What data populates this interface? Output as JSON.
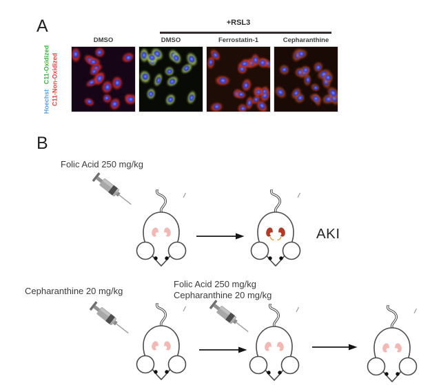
{
  "panel_a": {
    "label": "A",
    "treatment_header": "+RSL3",
    "column_labels": [
      "DMSO",
      "DMSO",
      "Ferrostatin-1",
      "Cepharanthine"
    ],
    "stain_labels": {
      "hoechst": {
        "text": "Hoechst",
        "color": "#5b9bd5"
      },
      "oxidized": {
        "text": "C11-Oxidized",
        "color": "#3fae47"
      },
      "non_oxidized": {
        "text": "C11-Non-Oxidized",
        "color": "#e9403b"
      }
    },
    "micrographs": [
      {
        "name": "DMSO",
        "bg": "#150516",
        "cytoplasm": "#d62a24",
        "nucleus": "#2f3fd8",
        "cells": 17,
        "seed": 7,
        "intensity": 1
      },
      {
        "name": "RSL3 + DMSO",
        "bg": "#070a05",
        "cytoplasm": "#a9c763",
        "nucleus": "#2f3fd0",
        "cells": 15,
        "seed": 11,
        "intensity": 0.95
      },
      {
        "name": "RSL3 + Ferrostatin-1",
        "bg": "#1e0c07",
        "cytoplasm": "#c93a22",
        "nucleus": "#2f3fd8",
        "cells": 22,
        "seed": 23,
        "intensity": 1
      },
      {
        "name": "RSL3 + Cepharanthine",
        "bg": "#1a0a06",
        "cytoplasm": "#bf4f26",
        "nucleus": "#2f3fd8",
        "cells": 20,
        "seed": 31,
        "intensity": 0.8
      }
    ]
  },
  "panel_b": {
    "label": "B",
    "row1": {
      "injection_label": "Folic Acid 250 mg/kg",
      "outcome_label": "AKI"
    },
    "row2": {
      "pre_treatment_label": "Cepharanthine 20 mg/kg",
      "combo_line1": "Folic Acid 250 mg/kg",
      "combo_line2": "Cepharanthine 20 mg/kg"
    },
    "mice": {
      "row1": [
        "healthy",
        "aki"
      ],
      "row2": [
        "healthy",
        "healthy",
        "healthy"
      ]
    },
    "kidney_colors": {
      "healthy": "#f2b9b4",
      "aki": "#b23a26"
    },
    "ureter_color": "#dd9b3a"
  }
}
